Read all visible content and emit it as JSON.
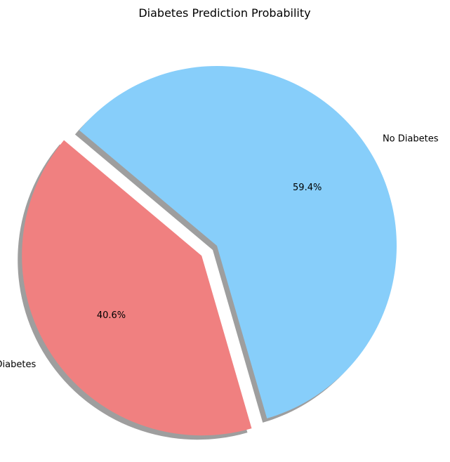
{
  "chart_data": {
    "type": "pie",
    "title": "Diabetes Prediction Probability",
    "slices": [
      {
        "label": "Diabetes",
        "value": 40.6,
        "percent_label": "40.6%",
        "color": "#F08080",
        "exploded": true
      },
      {
        "label": "No Diabetes",
        "value": 59.4,
        "percent_label": "59.4%",
        "color": "#87CEFA",
        "exploded": false
      }
    ],
    "start_angle_deg": 140,
    "shadow": true,
    "legend": "none"
  }
}
